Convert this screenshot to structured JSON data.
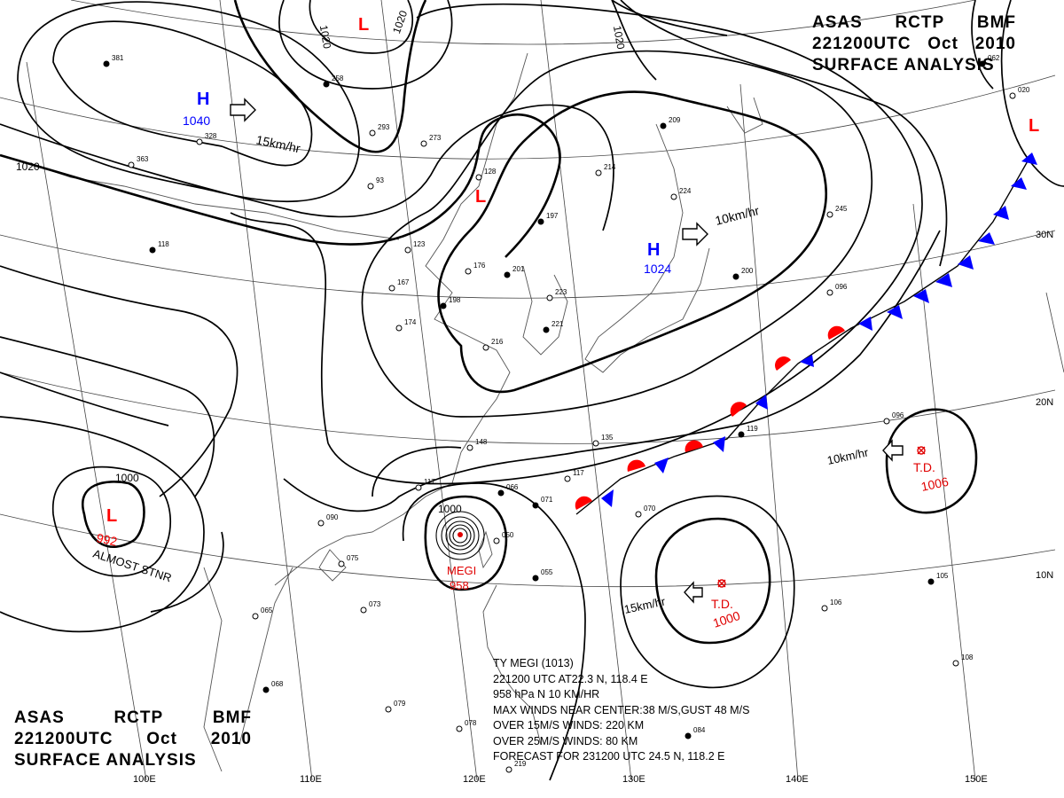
{
  "header": {
    "agency": [
      "ASAS",
      "RCTP",
      "BMF"
    ],
    "time": [
      "221200UTC",
      "Oct",
      "2010"
    ],
    "title": "SURFACE ANALYSIS"
  },
  "lat_labels": [
    "10N",
    "20N",
    "30N"
  ],
  "lon_labels": [
    "100E",
    "110E",
    "120E",
    "130E",
    "140E",
    "150E"
  ],
  "isobar_labels": [
    "1020",
    "1020",
    "1020",
    "1020",
    "1000",
    "1000"
  ],
  "pressure_systems": [
    {
      "letter": "H",
      "value": "1040",
      "color": "#0000ff",
      "motion": "15km/hr"
    },
    {
      "letter": "H",
      "value": "1024",
      "color": "#0000ff",
      "motion": "10km/hr"
    },
    {
      "letter": "L",
      "value": "",
      "color": "#ff0000"
    },
    {
      "letter": "L",
      "value": "",
      "color": "#ff0000"
    },
    {
      "letter": "L",
      "value": "",
      "color": "#ff0000"
    },
    {
      "letter": "L",
      "value": "992",
      "color": "#ff0000",
      "note": "ALMOST STNR"
    }
  ],
  "tropical_depressions": [
    {
      "label": "T.D.",
      "value": "1006",
      "motion": "10km/hr"
    },
    {
      "label": "T.D.",
      "value": "1000",
      "motion": "15km/hr"
    }
  ],
  "typhoon": {
    "name": "MEGI",
    "value": "958"
  },
  "typhoon_info": [
    "TY  MEGI  (1013)",
    "221200 UTC  AT22.3 N, 118.4 E",
    "958 hPa  N  10 KM/HR",
    "MAX WINDS NEAR CENTER:38 M/S,GUST 48 M/S",
    "OVER 15M/S WINDS: 220 KM",
    "OVER 25M/S WINDS: 80 KM",
    "FORECAST FOR 231200 UTC 24.5 N, 118.2 E"
  ],
  "station_values": [
    "381",
    "328",
    "363",
    "118",
    "293",
    "273",
    "258",
    "93",
    "128",
    "197",
    "214",
    "224",
    "209",
    "123",
    "176",
    "201",
    "223",
    "167",
    "198",
    "174",
    "216",
    "221",
    "245",
    "096",
    "200",
    "135",
    "117",
    "119",
    "148",
    "117",
    "066",
    "090",
    "075",
    "071",
    "050",
    "070",
    "055",
    "073",
    "065",
    "068",
    "079",
    "078",
    "084",
    "106",
    "108",
    "105",
    "096",
    "020",
    "062",
    "219"
  ],
  "colors": {
    "warm_front": "#ff0000",
    "cold_front": "#0000ff",
    "isobar": "#000000",
    "grid": "#333333"
  }
}
